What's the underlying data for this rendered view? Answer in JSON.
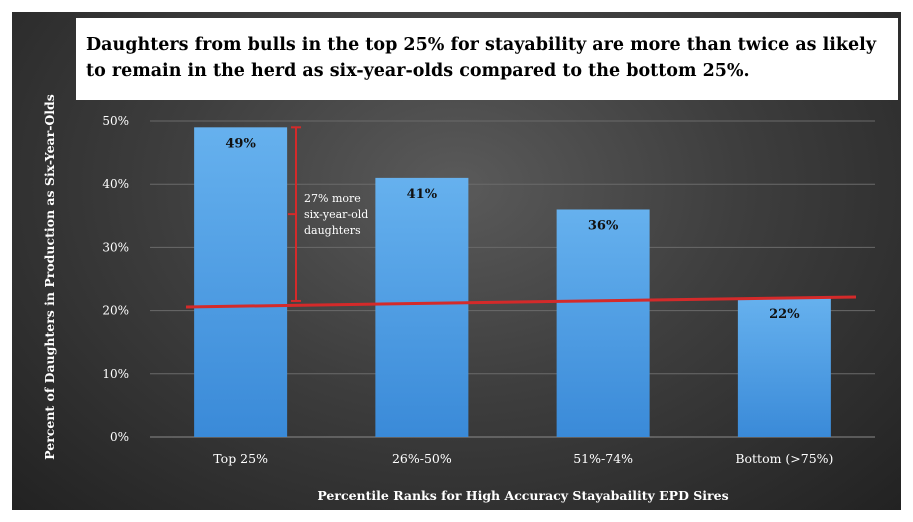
{
  "chart_data": {
    "type": "bar",
    "title": "Daughters from bulls in the top 25% for stayability are more than twice as likely to remain in the herd as six-year-olds compared to the bottom 25%.",
    "xlabel": "Percentile Ranks for High Accuracy Stayabaility EPD Sires",
    "ylabel": "Percent of Daughters in Production as Six-Year-Olds",
    "categories": [
      "Top 25%",
      "26%-50%",
      "51%-74%",
      "Bottom (>75%)"
    ],
    "values": [
      49,
      41,
      36,
      22
    ],
    "data_labels": [
      "49%",
      "41%",
      "36%",
      "22%"
    ],
    "ylim": [
      0,
      50
    ],
    "yticks": [
      0,
      10,
      20,
      30,
      40,
      50
    ],
    "ytick_labels": [
      "0%",
      "10%",
      "20%",
      "30%",
      "40%",
      "50%"
    ],
    "grid": true,
    "reference_line": {
      "value": 22
    },
    "annotation": {
      "lines": [
        "27% more",
        "six-year-old",
        "daughters"
      ],
      "bracket_from": 22,
      "bracket_to": 49
    },
    "colors": {
      "bar_top": "#66b1ee",
      "bar_bottom": "#3a8ad8",
      "reference_line": "#d42a2a",
      "grid": "#6a6a6a"
    }
  }
}
